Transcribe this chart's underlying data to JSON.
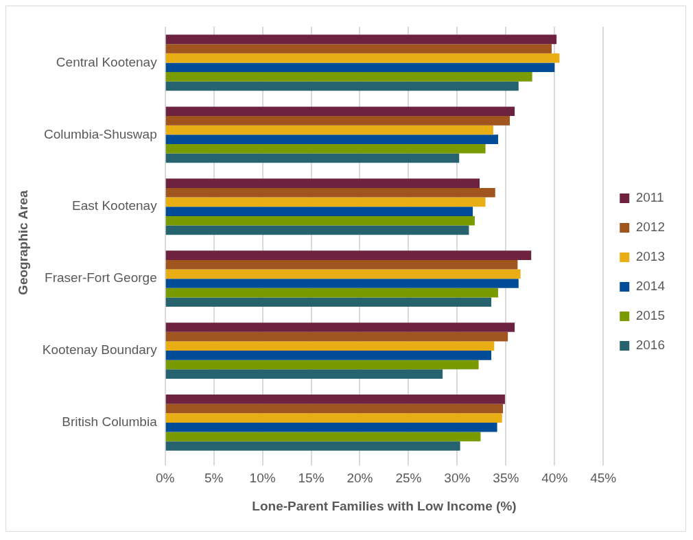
{
  "chart_data": {
    "type": "bar",
    "orientation": "horizontal",
    "xlabel": "Lone-Parent Families with Low Income (%)",
    "ylabel": "Geographic Area",
    "categories": [
      "Central Kootenay",
      "Columbia-Shuswap",
      "East Kootenay",
      "Fraser-Fort George",
      "Kootenay Boundary",
      "British Columbia"
    ],
    "series": [
      {
        "name": "2011",
        "color": "#6d233f",
        "values": [
          40.2,
          35.9,
          32.3,
          37.6,
          35.9,
          34.9
        ]
      },
      {
        "name": "2012",
        "color": "#a0541e",
        "values": [
          39.7,
          35.4,
          33.9,
          36.2,
          35.2,
          34.7
        ]
      },
      {
        "name": "2013",
        "color": "#e9ae14",
        "values": [
          40.5,
          33.7,
          32.9,
          36.5,
          33.8,
          34.6
        ]
      },
      {
        "name": "2014",
        "color": "#004c97",
        "values": [
          40.0,
          34.2,
          31.6,
          36.3,
          33.5,
          34.1
        ]
      },
      {
        "name": "2015",
        "color": "#799b00",
        "values": [
          37.7,
          32.9,
          31.8,
          34.2,
          32.2,
          32.4
        ]
      },
      {
        "name": "2016",
        "color": "#26636e",
        "values": [
          36.3,
          30.2,
          31.2,
          33.5,
          28.5,
          30.3
        ]
      }
    ],
    "xlim": [
      0,
      45
    ],
    "xticks": [
      {
        "value": 0,
        "label": "0%"
      },
      {
        "value": 5,
        "label": "5%"
      },
      {
        "value": 10,
        "label": "10%"
      },
      {
        "value": 15,
        "label": "15%"
      },
      {
        "value": 20,
        "label": "20%"
      },
      {
        "value": 25,
        "label": "25%"
      },
      {
        "value": 30,
        "label": "30%"
      },
      {
        "value": 35,
        "label": "35%"
      },
      {
        "value": 40,
        "label": "40%"
      },
      {
        "value": 45,
        "label": "45%"
      }
    ],
    "grid": "x",
    "legend": "right"
  }
}
